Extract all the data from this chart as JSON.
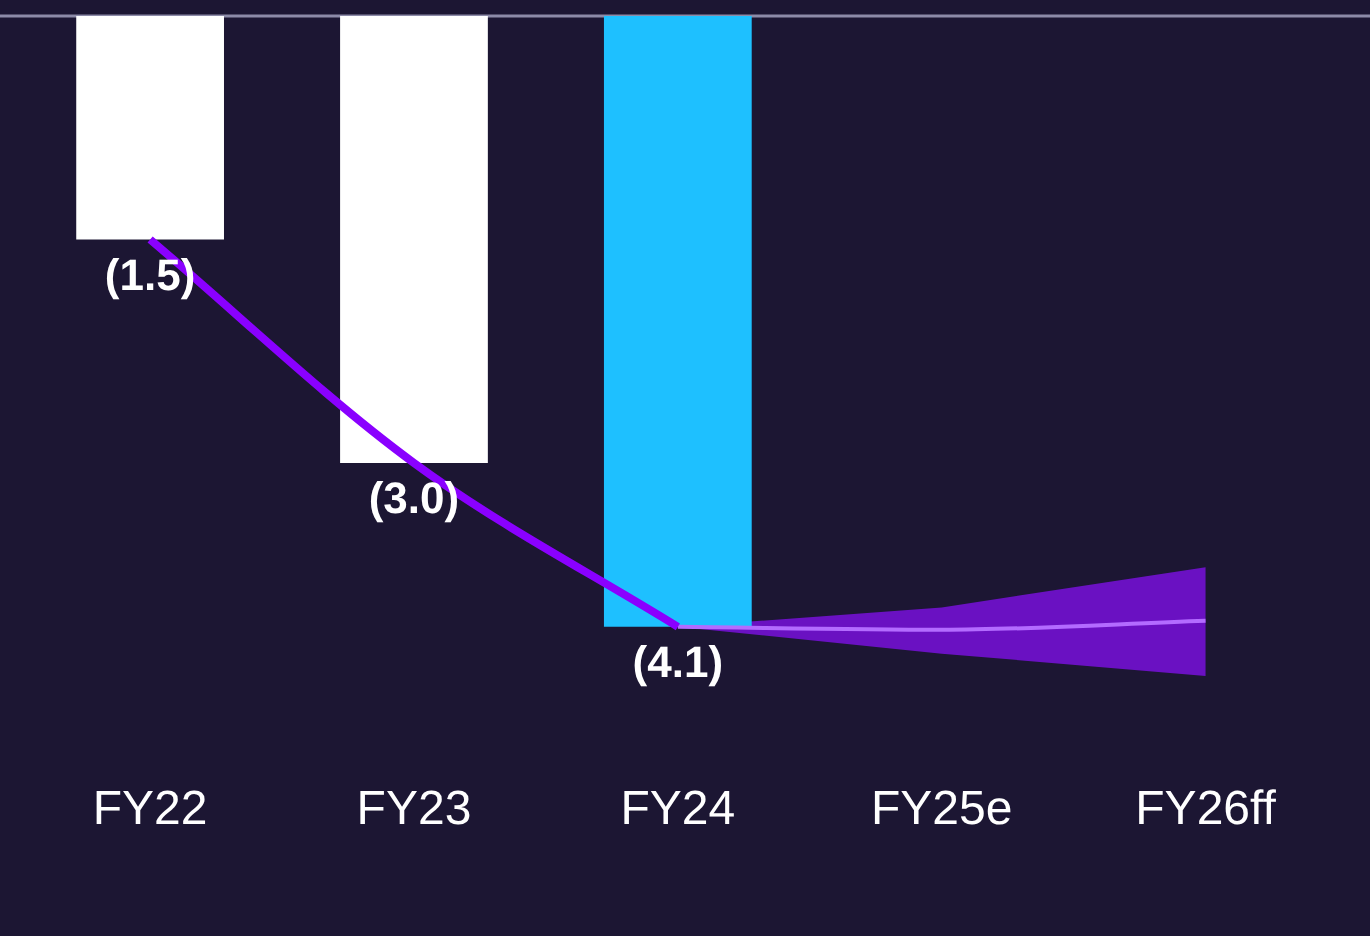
{
  "chart_data": {
    "type": "bar",
    "categories": [
      "FY22",
      "FY23",
      "FY24",
      "FY25e",
      "FY26ff"
    ],
    "series": [
      {
        "colors": [
          "#ffffff",
          "#ffffff",
          "#1ec0ff",
          null,
          null
        ],
        "values": [
          -1.5,
          -3.0,
          -4.1,
          null,
          null
        ],
        "value_labels": [
          "(1.5)",
          "(3.0)",
          "(4.1)",
          null,
          null
        ]
      },
      {
        "type": "line",
        "color": "#8a00ff",
        "values": [
          -1.5,
          -3.0,
          -4.1,
          null,
          null
        ]
      },
      {
        "type": "line",
        "color": "#b36bff",
        "values": [
          null,
          null,
          -4.1,
          -4.12,
          -4.06
        ],
        "lower": [
          null,
          null,
          -4.1,
          -4.28,
          -4.43
        ],
        "upper": [
          null,
          null,
          -4.1,
          -3.97,
          -3.7
        ]
      }
    ],
    "grid": false,
    "legend": false,
    "tick_labels": "x"
  }
}
